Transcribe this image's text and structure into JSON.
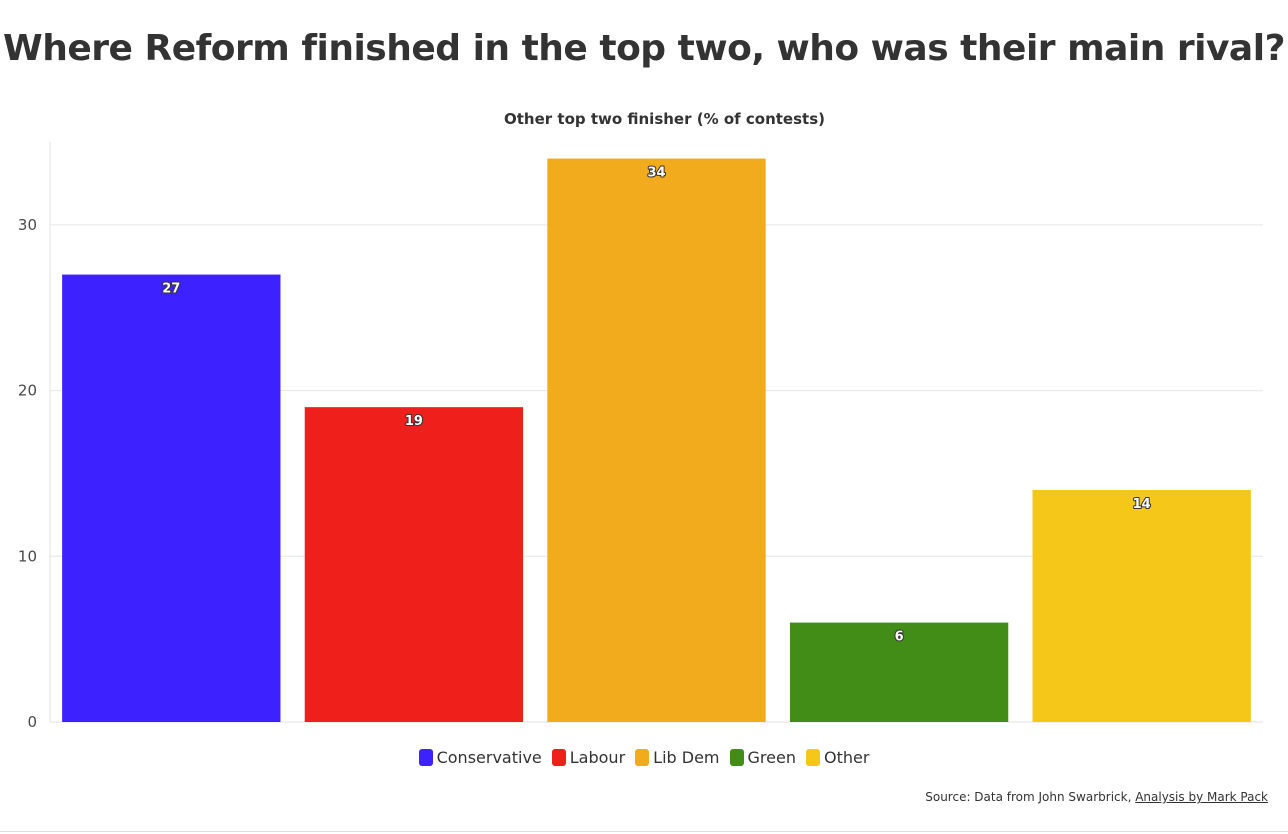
{
  "chart_data": {
    "type": "bar",
    "title": "Where Reform finished in the top two, who was their main rival?",
    "subtitle": "Other top two finisher (% of contests)",
    "categories": [
      "Conservative",
      "Labour",
      "Lib Dem",
      "Green",
      "Other"
    ],
    "values": [
      27,
      19,
      34,
      6,
      14
    ],
    "colors": [
      "#3d22ff",
      "#ef201c",
      "#f2ab1c",
      "#428c18",
      "#f4c718"
    ],
    "ylim": [
      0,
      35
    ],
    "yticks": [
      0,
      10,
      20,
      30
    ],
    "grid": true,
    "legend_position": "bottom-center",
    "source_prefix": "Source: Data from John Swarbrick, ",
    "source_link": "Analysis by Mark Pack"
  }
}
